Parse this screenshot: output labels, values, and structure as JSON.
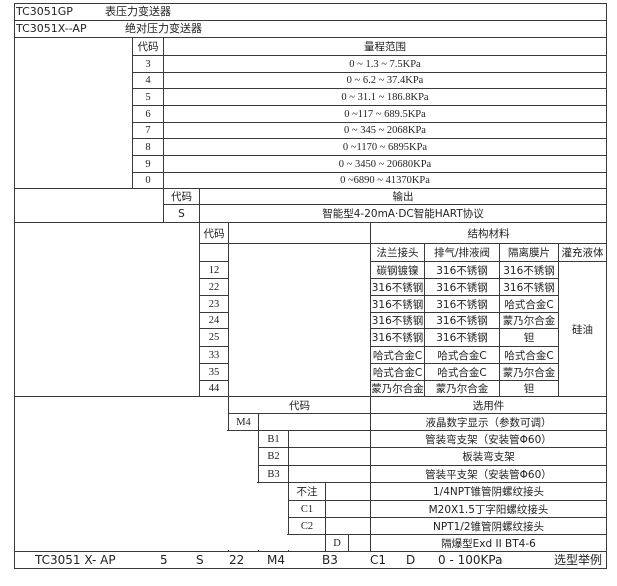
{
  "models": [
    {
      "code": "TC3051GP",
      "name": "表压力变送器"
    },
    {
      "code": "TC3051X--AP",
      "name": "绝对压力变送器"
    }
  ],
  "range": {
    "code_header": "代码",
    "header": "量程范围",
    "rows": [
      {
        "code": "3",
        "range": "0 ~ 1.3 ~ 7.5KPa"
      },
      {
        "code": "4",
        "range": "0 ~ 6.2 ~ 37.4KPa"
      },
      {
        "code": "5",
        "range": "0 ~ 31.1 ~ 186.8KPa"
      },
      {
        "code": "6",
        "range": "0 ~117 ~ 689.5KPa"
      },
      {
        "code": "7",
        "range": "0 ~ 345 ~ 2068KPa"
      },
      {
        "code": "8",
        "range": "0 ~1170 ~ 6895KPa"
      },
      {
        "code": "9",
        "range": "0 ~ 3450 ~ 20680KPa"
      },
      {
        "code": "0",
        "range": "0 ~6890 ~ 41370KPa"
      }
    ]
  },
  "output": {
    "code_header": "代码",
    "header": "输出",
    "rows": [
      {
        "code": "S",
        "desc": "智能型4-20mA·DC智能HART协议"
      }
    ]
  },
  "structure": {
    "code_header": "代码",
    "header": "结构材料",
    "columns": [
      "法兰接头",
      "排气/排液阀",
      "隔离膜片",
      "灌充液体"
    ],
    "fill": "硅油",
    "rows": [
      {
        "code": "12",
        "flange": "碳钢镀镍",
        "vent": "316不锈钢",
        "diaphragm": "316不锈钢"
      },
      {
        "code": "22",
        "flange": "316不锈钢",
        "vent": "316不锈钢",
        "diaphragm": "316不锈钢"
      },
      {
        "code": "23",
        "flange": "316不锈钢",
        "vent": "316不锈钢",
        "diaphragm": "哈式合金C"
      },
      {
        "code": "24",
        "flange": "316不锈钢",
        "vent": "316不锈钢",
        "diaphragm": "蒙乃尔合金"
      },
      {
        "code": "25",
        "flange": "316不锈钢",
        "vent": "316不锈钢",
        "diaphragm": "钽"
      },
      {
        "code": "33",
        "flange": "哈式合金C",
        "vent": "哈式合金C",
        "diaphragm": "哈式合金C"
      },
      {
        "code": "35",
        "flange": "哈式合金C",
        "vent": "哈式合金C",
        "diaphragm": "蒙乃尔合金"
      },
      {
        "code": "44",
        "flange": "蒙乃尔合金",
        "vent": "蒙乃尔合金",
        "diaphragm": "钽"
      }
    ]
  },
  "options": {
    "code_header": "代码",
    "header": "选用件",
    "rows": [
      {
        "code": "M4",
        "desc": "液晶数字显示（参数可调）"
      },
      {
        "code": "B1",
        "desc": "管装弯支架（安装管Φ60）"
      },
      {
        "code": "B2",
        "desc": "板装弯支架"
      },
      {
        "code": "B3",
        "desc": "管装平支架（安装管Φ60）"
      },
      {
        "code": "不注",
        "desc": "1/4NPT锥管阴螺纹接头"
      },
      {
        "code": "C1",
        "desc": "M20X1.5丁字阳螺纹接头"
      },
      {
        "code": "C2",
        "desc": "NPT1/2锥管阴螺纹接头"
      },
      {
        "code": "D",
        "desc": "隔爆型Exd II BT4-6"
      }
    ]
  },
  "example": {
    "parts": [
      "TC3051 X- AP",
      "5",
      "S",
      "22",
      "M4",
      "B3",
      "C1",
      "D",
      "0 - 100KPa"
    ],
    "label": "选型举例"
  }
}
